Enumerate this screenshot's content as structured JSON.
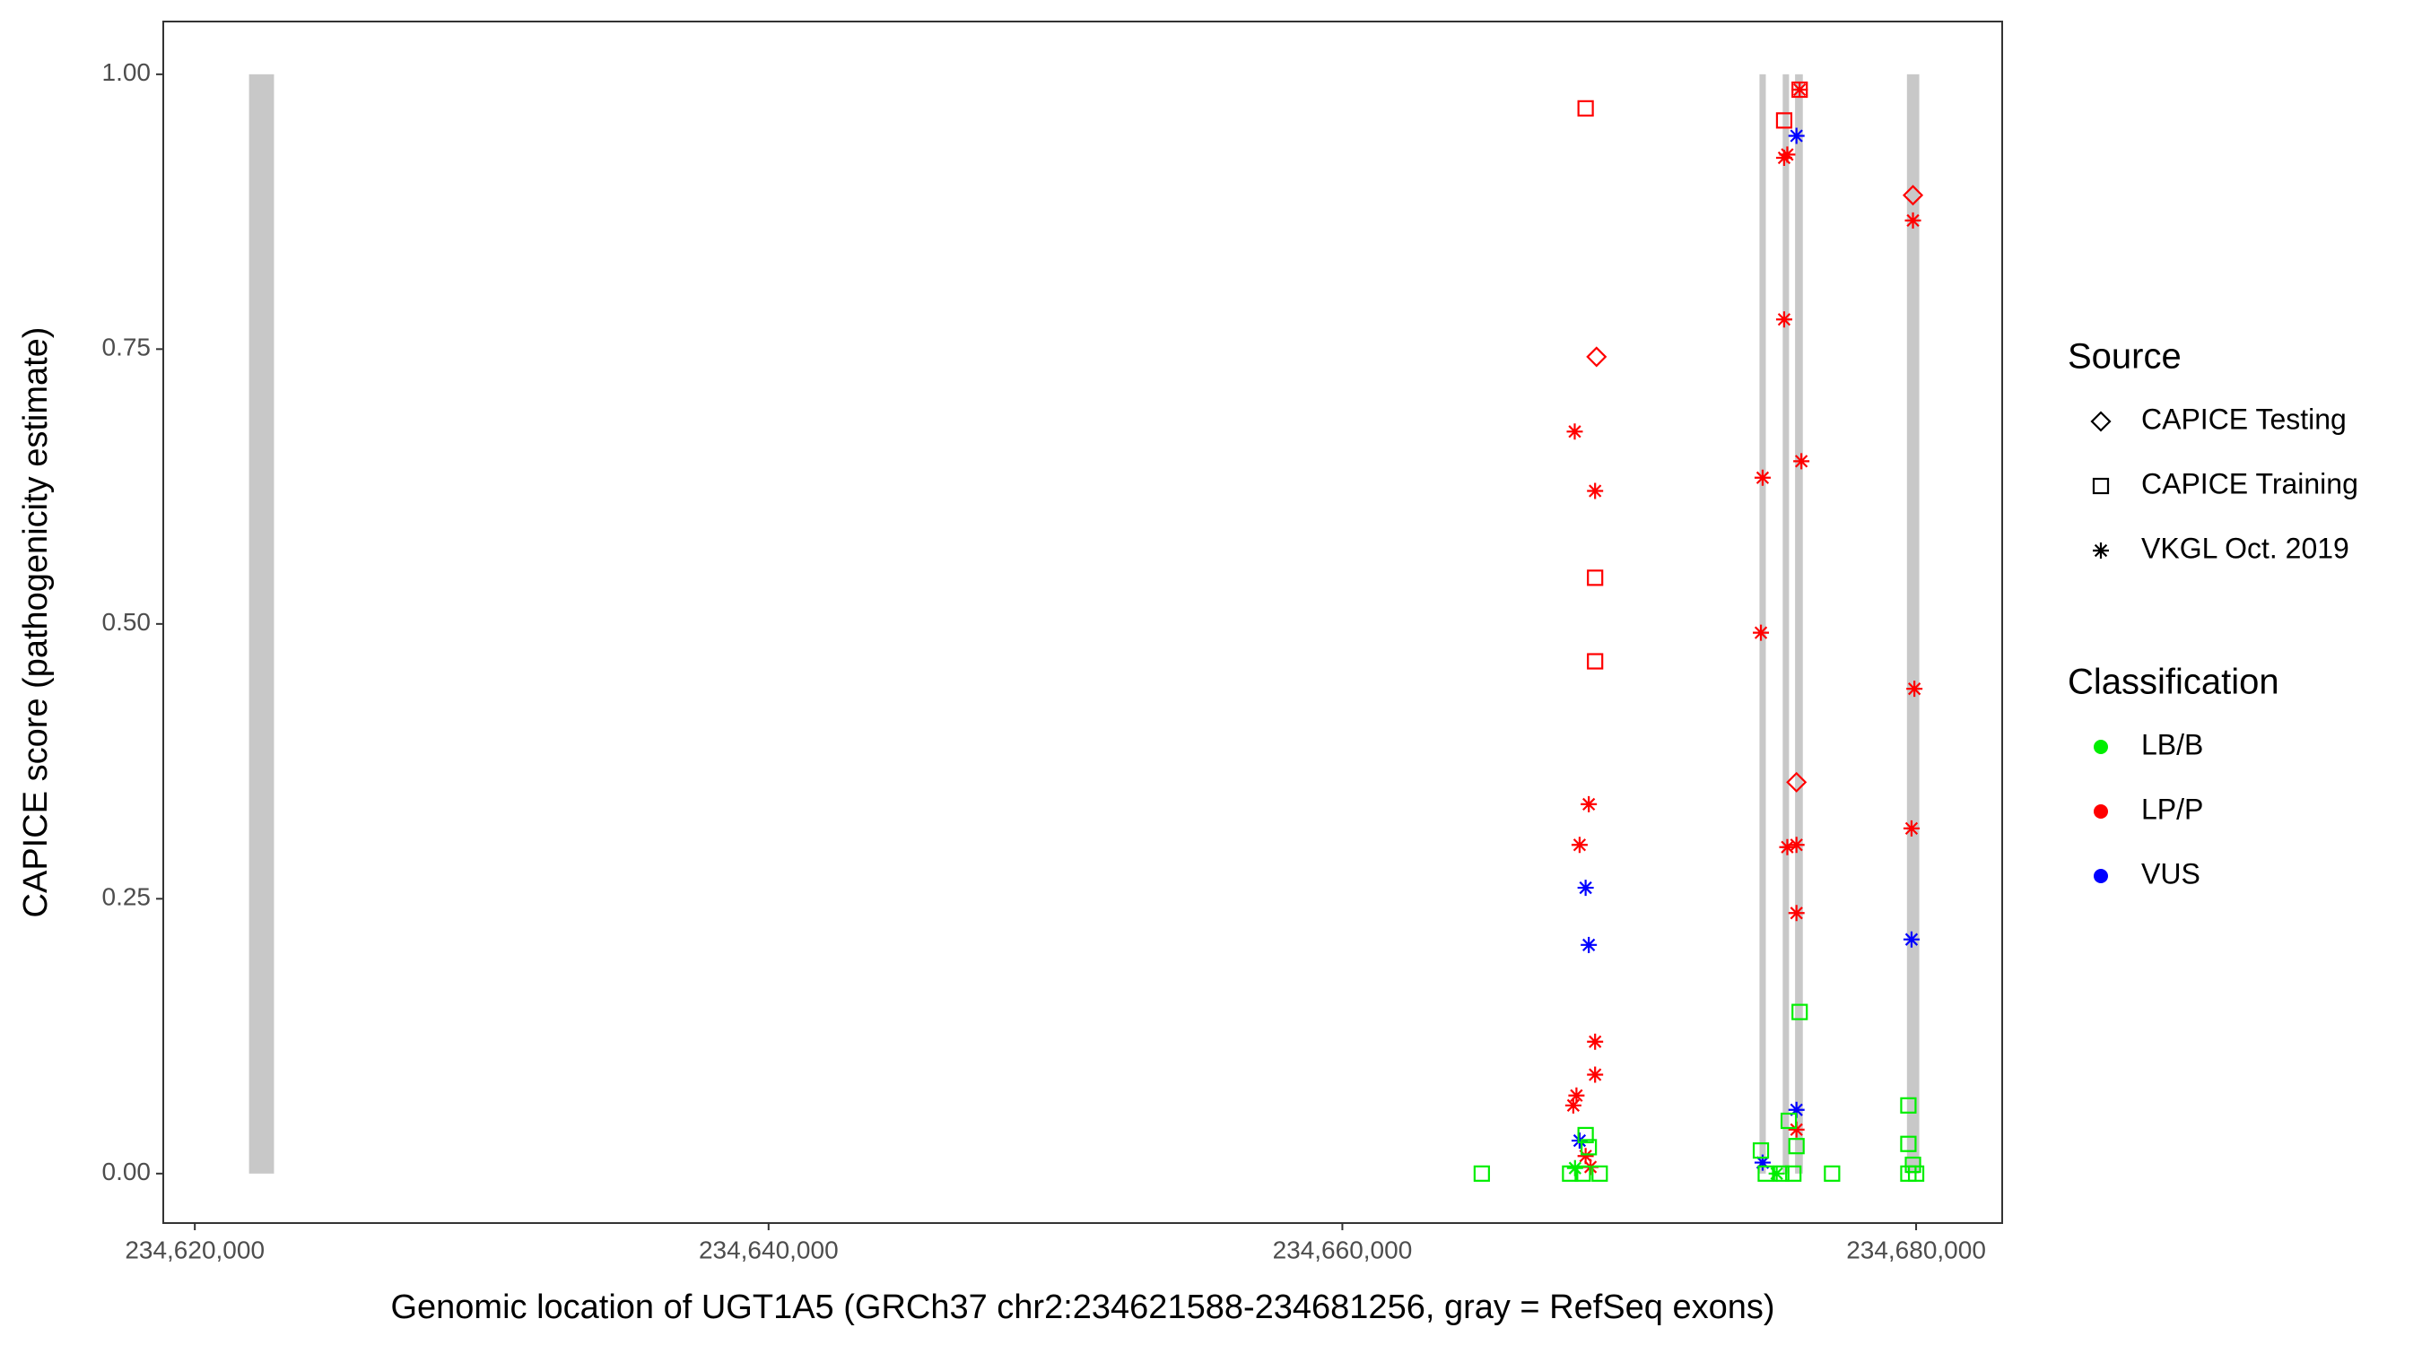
{
  "chart_data": {
    "type": "scatter",
    "x_label": "Genomic location of UGT1A5 (GRCh37 chr2:234621588-234681256, gray = RefSeq exons)",
    "y_label": "CAPICE score (pathogenicity estimate)",
    "xlim": [
      234618900,
      234683000
    ],
    "ylim": [
      -0.045,
      1.048
    ],
    "xticks": [
      {
        "value": 234620000,
        "label": "234,620,000"
      },
      {
        "value": 234640000,
        "label": "234,640,000"
      },
      {
        "value": 234660000,
        "label": "234,660,000"
      },
      {
        "value": 234680000,
        "label": "234,680,000"
      }
    ],
    "yticks": [
      {
        "value": 0,
        "label": "0.00"
      },
      {
        "value": 0.25,
        "label": "0.25"
      },
      {
        "value": 0.5,
        "label": "0.50"
      },
      {
        "value": 0.75,
        "label": "0.75"
      },
      {
        "value": 1,
        "label": "1.00"
      }
    ],
    "exon_color": "#c8c8c8",
    "exons": [
      [
        234621890,
        234622760
      ],
      [
        234674540,
        234674760
      ],
      [
        234675350,
        234675570
      ],
      [
        234675780,
        234676050
      ],
      [
        234679680,
        234680110
      ]
    ],
    "source_legend_title": "Source",
    "sources": [
      {
        "name": "CAPICE Testing",
        "shape": "diamond"
      },
      {
        "name": "CAPICE Training",
        "shape": "square"
      },
      {
        "name": "VKGL Oct. 2019",
        "shape": "asterisk"
      }
    ],
    "classification_legend_title": "Classification",
    "classifications": [
      {
        "name": "LB/B",
        "color": "#00ee00"
      },
      {
        "name": "LP/P",
        "color": "#ff0000"
      },
      {
        "name": "VUS",
        "color": "#0000ff"
      }
    ],
    "series": [
      {
        "source": "CAPICE Testing",
        "classification": "LP/P",
        "x": [
          234668860,
          234679890,
          234675830
        ],
        "values": [
          0.743,
          0.89,
          0.356
        ]
      },
      {
        "source": "CAPICE Training",
        "classification": "LP/P",
        "x": [
          234668480,
          234668810,
          234668810,
          234675400,
          234675940
        ],
        "values": [
          0.969,
          0.542,
          0.466,
          0.958,
          0.986
        ]
      },
      {
        "source": "VKGL Oct. 2019",
        "classification": "LP/P",
        "x": [
          234668100,
          234668810,
          234668590,
          234668270,
          234668810,
          234668810,
          234668160,
          234668050,
          234668480,
          234668650,
          234674650,
          234674590,
          234675400,
          234675400,
          234675510,
          234675940,
          234676000,
          234679890,
          234679940,
          234679840,
          234675510,
          234675830,
          234675830,
          234675830
        ],
        "values": [
          0.675,
          0.621,
          0.336,
          0.299,
          0.12,
          0.09,
          0.071,
          0.062,
          0.016,
          0.006,
          0.633,
          0.492,
          0.777,
          0.924,
          0.927,
          0.986,
          0.648,
          0.867,
          0.441,
          0.314,
          0.297,
          0.299,
          0.237,
          0.04
        ]
      },
      {
        "source": "VKGL Oct. 2019",
        "classification": "VUS",
        "x": [
          234668480,
          234668590,
          234668270,
          234675830,
          234675830,
          234674650,
          234679840
        ],
        "values": [
          0.26,
          0.208,
          0.03,
          0.944,
          0.058,
          0.01,
          0.213
        ]
      },
      {
        "source": "CAPICE Training",
        "classification": "LB/B",
        "x": [
          234664860,
          234667940,
          234668380,
          234668970,
          234668480,
          234668590,
          234675940,
          234675560,
          234675830,
          234674590,
          234674760,
          234675300,
          234675720,
          234677070,
          234679730,
          234679730,
          234679890,
          234679730,
          234680000
        ],
        "values": [
          0,
          0,
          0,
          0,
          0.035,
          0.024,
          0.147,
          0.048,
          0.025,
          0.021,
          0,
          0,
          0,
          0,
          0.062,
          0.027,
          0.008,
          0,
          0
        ]
      },
      {
        "source": "VKGL Oct. 2019",
        "classification": "LB/B",
        "x": [
          234668110,
          234675140
        ],
        "values": [
          0.005,
          0
        ]
      }
    ]
  }
}
